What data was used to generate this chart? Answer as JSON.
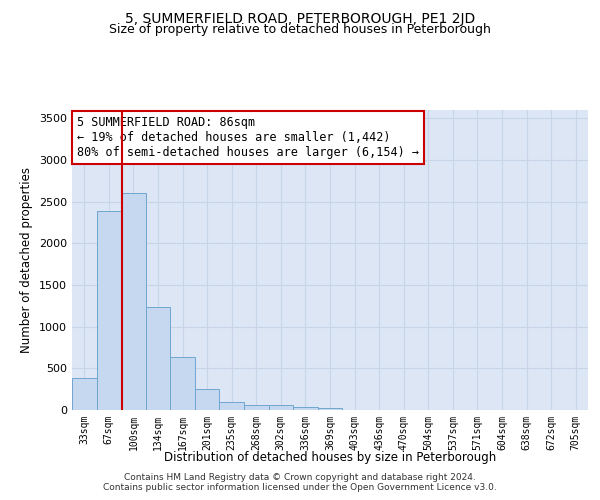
{
  "title_line1": "5, SUMMERFIELD ROAD, PETERBOROUGH, PE1 2JD",
  "title_line2": "Size of property relative to detached houses in Peterborough",
  "xlabel": "Distribution of detached houses by size in Peterborough",
  "ylabel": "Number of detached properties",
  "footnote_line1": "Contains HM Land Registry data © Crown copyright and database right 2024.",
  "footnote_line2": "Contains public sector information licensed under the Open Government Licence v3.0.",
  "bin_labels": [
    "33sqm",
    "67sqm",
    "100sqm",
    "134sqm",
    "167sqm",
    "201sqm",
    "235sqm",
    "268sqm",
    "302sqm",
    "336sqm",
    "369sqm",
    "403sqm",
    "436sqm",
    "470sqm",
    "504sqm",
    "537sqm",
    "571sqm",
    "604sqm",
    "638sqm",
    "672sqm",
    "705sqm"
  ],
  "bar_values": [
    380,
    2390,
    2600,
    1240,
    640,
    255,
    100,
    65,
    55,
    40,
    30,
    0,
    0,
    0,
    0,
    0,
    0,
    0,
    0,
    0,
    0
  ],
  "bar_color": "#c5d8ef",
  "bar_edge_color": "#6ea6d0",
  "annotation_text": "5 SUMMERFIELD ROAD: 86sqm\n← 19% of detached houses are smaller (1,442)\n80% of semi-detached houses are larger (6,154) →",
  "annotation_box_color": "#ffffff",
  "annotation_box_edge_color": "#cc0000",
  "vline_x": 1.55,
  "vline_color": "#cc0000",
  "ylim": [
    0,
    3600
  ],
  "yticks": [
    0,
    500,
    1000,
    1500,
    2000,
    2500,
    3000,
    3500
  ],
  "grid_color": "#c8d4e8",
  "bg_color": "#dce6f4",
  "title_fontsize": 10,
  "subtitle_fontsize": 9,
  "label_fontsize": 8.5,
  "annot_fontsize": 8.5
}
